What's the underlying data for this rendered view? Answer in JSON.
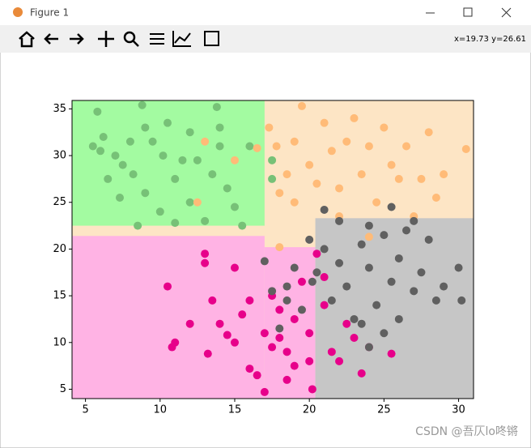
{
  "window": {
    "title": "Figure 1",
    "status": "x=19.73 y=26.61",
    "watermark": "CSDN @吾仄lo咚锵"
  },
  "chart_data": {
    "type": "scatter",
    "xlim": [
      4.1,
      31
    ],
    "ylim": [
      4,
      35.9
    ],
    "xticks": [
      5,
      10,
      15,
      20,
      25,
      30
    ],
    "yticks": [
      5,
      10,
      15,
      20,
      25,
      30,
      35
    ],
    "regions": [
      {
        "color": "#fde5c5",
        "xlim": [
          4.1,
          31
        ],
        "ylim": [
          4,
          35.9
        ]
      },
      {
        "color": "#a3fba1",
        "xlim": [
          4.1,
          17
        ],
        "ylim": [
          22.5,
          35.9
        ]
      },
      {
        "color": "#ffb3e4",
        "xlim": [
          4.1,
          17
        ],
        "ylim": [
          4,
          21.4
        ]
      },
      {
        "color": "#ffb3e4",
        "xlim": [
          17,
          20.4
        ],
        "ylim": [
          4,
          20.2
        ]
      },
      {
        "color": "#c6c6c6",
        "xlim": [
          20.4,
          31
        ],
        "ylim": [
          4,
          23.3
        ]
      }
    ],
    "series": [
      {
        "color": "#77c177",
        "x": [
          5.5,
          5.8,
          6.2,
          6.5,
          7,
          7.3,
          7.5,
          8,
          8.2,
          8.5,
          8.8,
          9,
          9.5,
          10,
          10.2,
          10.5,
          11,
          11.5,
          12,
          12,
          12.5,
          13,
          13.5,
          13.8,
          14,
          14.5,
          15,
          15.5,
          16,
          17.5,
          17.5,
          6,
          9,
          11,
          14
        ],
        "y": [
          31,
          34.7,
          32,
          27.5,
          30,
          25.5,
          29,
          31.5,
          28,
          22.5,
          35.4,
          26,
          31.5,
          24,
          30,
          33.5,
          27.5,
          29.5,
          25,
          32.5,
          29.5,
          23,
          28,
          35.2,
          31,
          26.5,
          24.5,
          22.5,
          31,
          29.5,
          27.5,
          30.5,
          33,
          22.8,
          33
        ]
      },
      {
        "color": "#ffbb78",
        "x": [
          17.3,
          17.8,
          18,
          18.5,
          19,
          19.5,
          20,
          20.5,
          21,
          21.5,
          22,
          22.5,
          23,
          23.5,
          24,
          24.5,
          25,
          25.5,
          26,
          26.5,
          27,
          27.5,
          28,
          29,
          30.5,
          18,
          24,
          12.5,
          13,
          15,
          28.5,
          22,
          19,
          16.5
        ],
        "y": [
          33,
          31,
          26,
          28,
          31.5,
          35.3,
          29,
          27,
          33.5,
          30.5,
          26.5,
          31.5,
          34,
          28,
          31,
          25,
          33,
          29,
          27.5,
          31,
          23.5,
          27.5,
          32.5,
          28,
          30.7,
          20.2,
          21.3,
          25,
          31.5,
          29.5,
          25.5,
          23.5,
          25,
          30.8
        ]
      },
      {
        "color": "#e7008a",
        "x": [
          10.5,
          10.8,
          11,
          12,
          13,
          13,
          13.2,
          13.5,
          14,
          14.5,
          15,
          15.5,
          16,
          16.5,
          17,
          17,
          17.5,
          18,
          18.5,
          18.5,
          19,
          19.5,
          20,
          20.2,
          20.5,
          21,
          21.5,
          22,
          22.5,
          23,
          23.5,
          24,
          25.5,
          16,
          18,
          20,
          21,
          19,
          15,
          17.5
        ],
        "y": [
          16,
          9.5,
          10,
          12,
          19.5,
          18.5,
          8.8,
          14.5,
          12,
          10.8,
          18,
          13,
          7.2,
          6.5,
          11,
          4.7,
          15,
          13.5,
          9,
          6,
          12.5,
          16.5,
          11,
          5,
          19.5,
          14,
          9,
          8,
          12,
          10.5,
          6.7,
          9.5,
          8.8,
          14.5,
          10.5,
          8,
          17,
          7.5,
          10,
          9.5
        ]
      },
      {
        "color": "#606060",
        "x": [
          17,
          17.5,
          18,
          18.5,
          19,
          19.5,
          20,
          20.5,
          21,
          21.5,
          22,
          22,
          22.5,
          23,
          23.5,
          24,
          24,
          24.5,
          25,
          25,
          25.5,
          25.5,
          26,
          26,
          26.5,
          27,
          27,
          27.5,
          28,
          28.5,
          29,
          30,
          30.2,
          21,
          20.2,
          23.5,
          18.5,
          24
        ],
        "y": [
          18.7,
          15.5,
          11.5,
          16,
          18,
          13.5,
          21,
          17.5,
          20,
          14.5,
          23,
          18.5,
          16,
          12.5,
          20.5,
          18,
          9.5,
          14,
          21.5,
          11,
          24.5,
          16.5,
          19,
          12.5,
          22,
          15.5,
          23,
          17.5,
          21,
          14.5,
          16,
          18,
          14.5,
          24.2,
          16.5,
          12,
          14.5,
          22.5
        ]
      }
    ]
  }
}
